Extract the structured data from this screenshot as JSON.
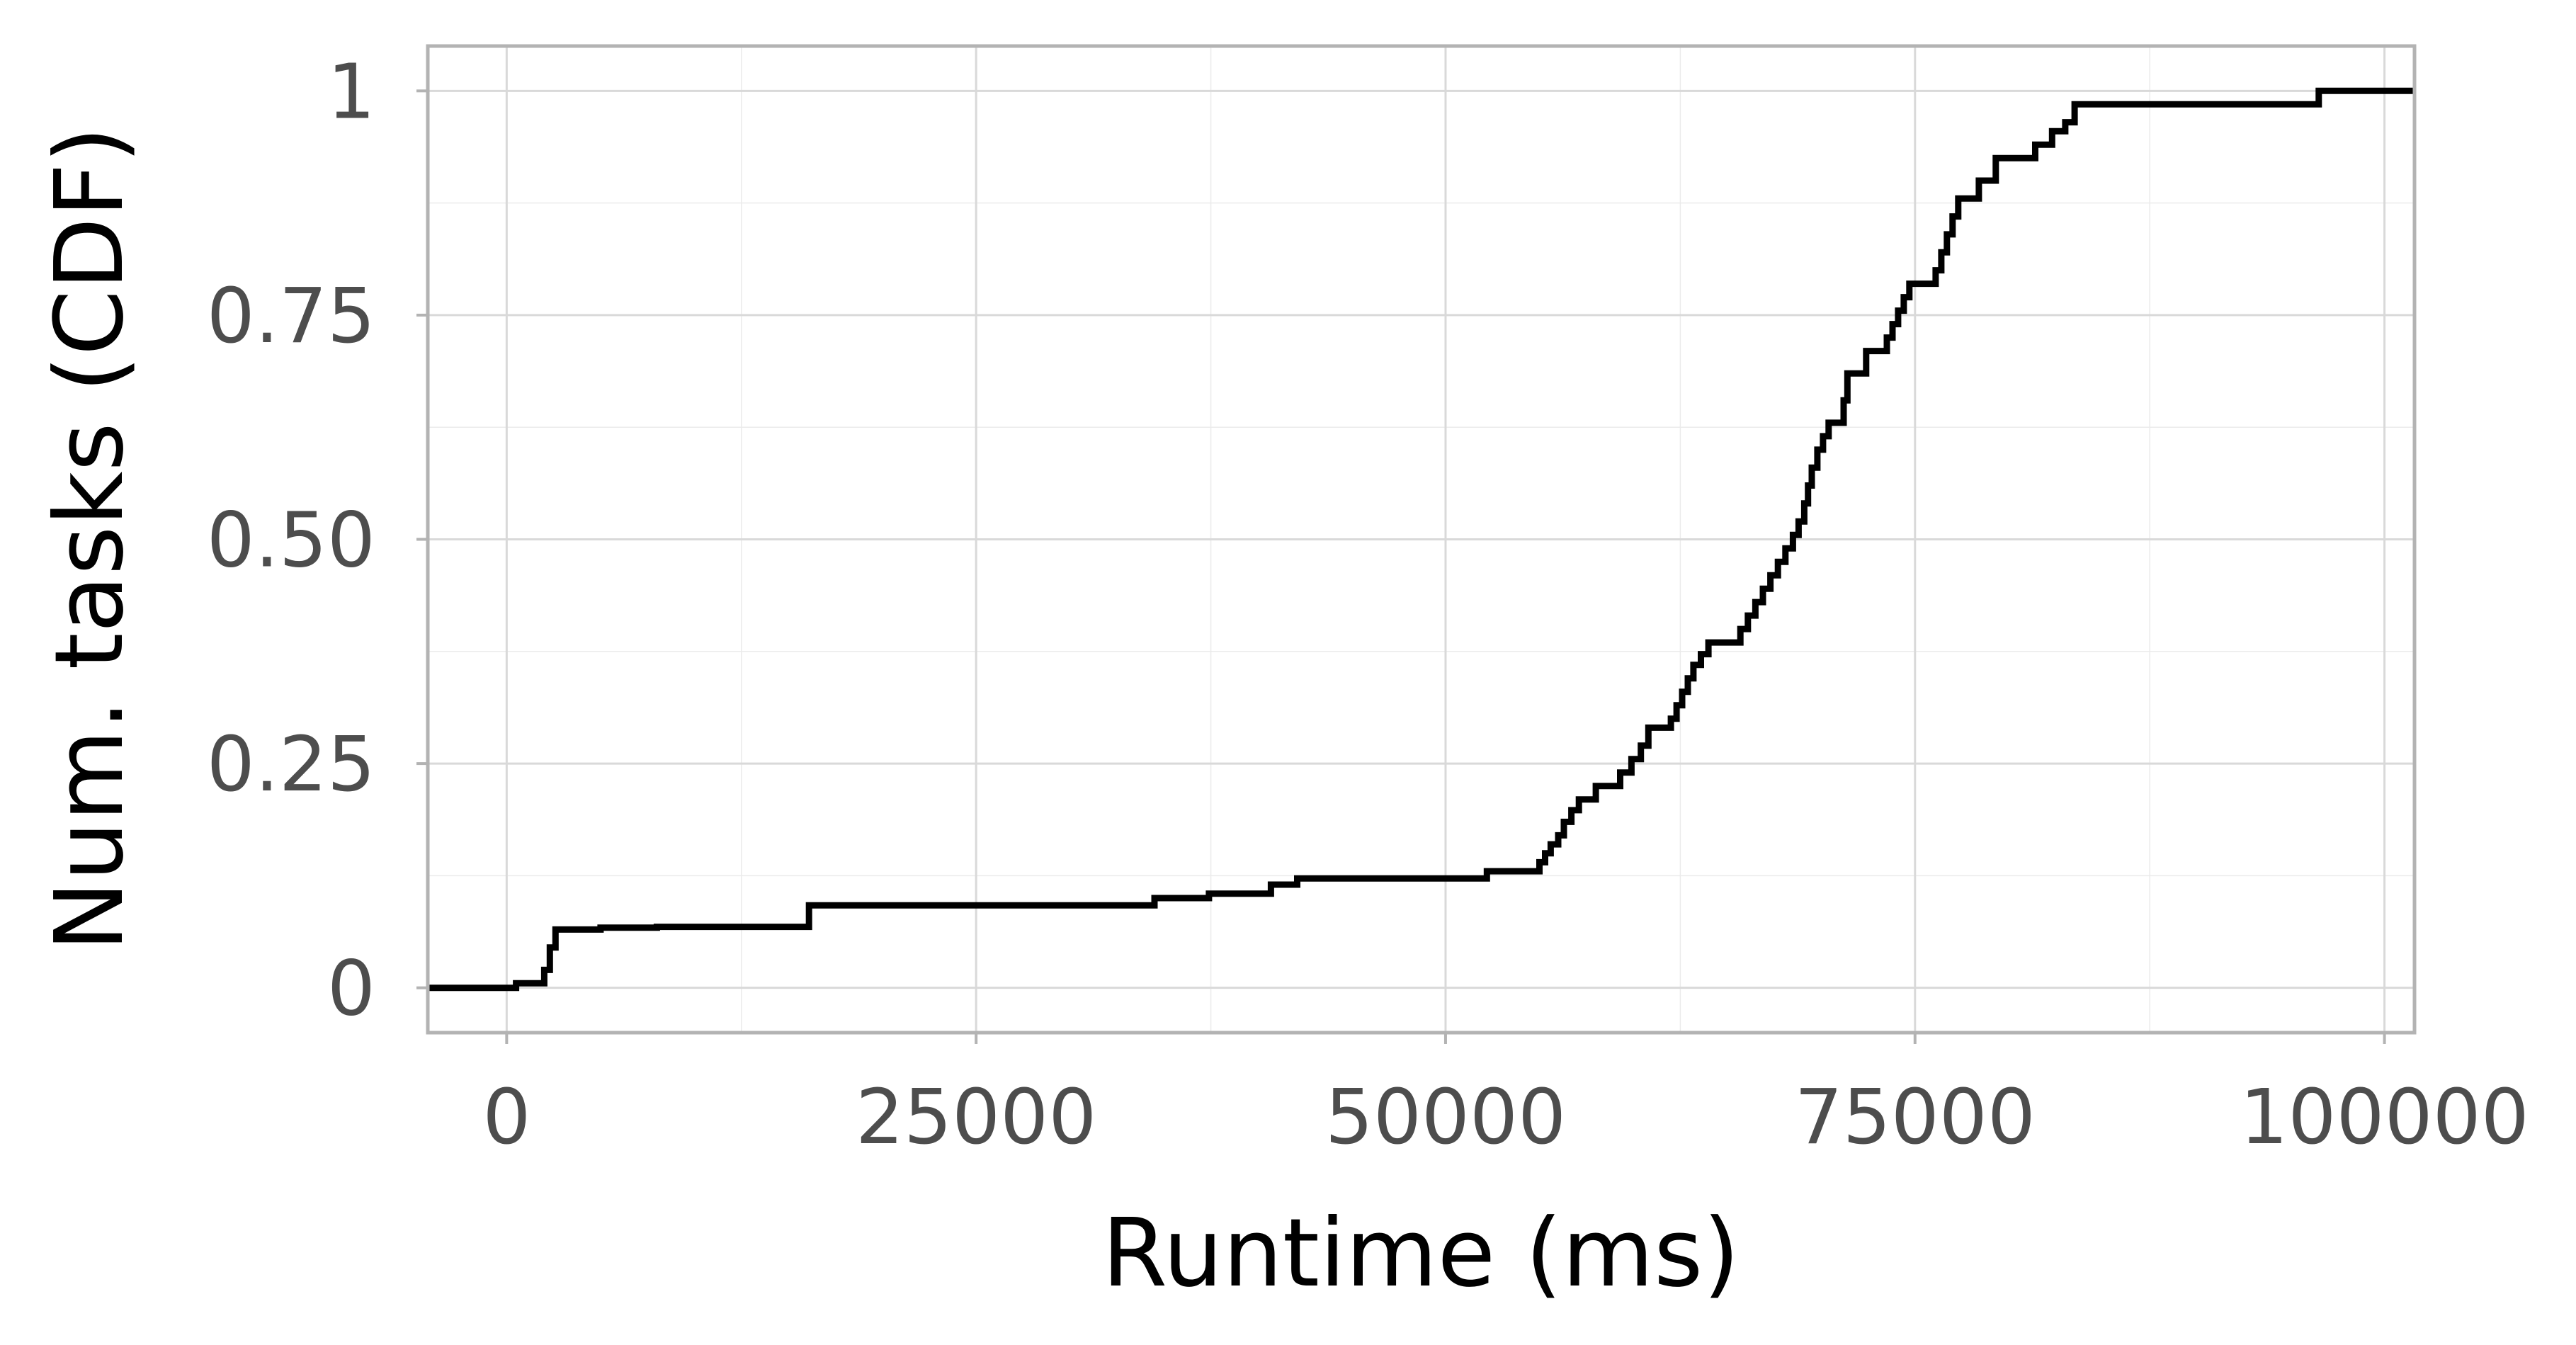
{
  "chart_data": {
    "type": "line",
    "step": true,
    "xlabel": "Runtime (ms)",
    "ylabel": "Num. tasks (CDF)",
    "xlim": [
      -4200,
      101600
    ],
    "ylim": [
      -0.05,
      1.05
    ],
    "x_ticks": [
      0,
      25000,
      50000,
      75000,
      100000
    ],
    "x_tick_labels": [
      "0",
      "25000",
      "50000",
      "75000",
      "100000"
    ],
    "y_ticks": [
      0,
      0.25,
      0.5,
      0.75,
      1
    ],
    "y_tick_labels": [
      "0",
      "0.25",
      "0.50",
      "0.75",
      "1"
    ],
    "grid": true,
    "legend": "none",
    "line_color": "#000000",
    "series": [
      {
        "points": [
          [
            -4200,
            0.0
          ],
          [
            500,
            0.0
          ],
          [
            500,
            0.005
          ],
          [
            2000,
            0.005
          ],
          [
            2000,
            0.02
          ],
          [
            2300,
            0.02
          ],
          [
            2300,
            0.045
          ],
          [
            2600,
            0.045
          ],
          [
            2600,
            0.065
          ],
          [
            5000,
            0.065
          ],
          [
            5000,
            0.067
          ],
          [
            8000,
            0.067
          ],
          [
            8000,
            0.068
          ],
          [
            16100,
            0.068
          ],
          [
            16100,
            0.092
          ],
          [
            34500,
            0.092
          ],
          [
            34500,
            0.1
          ],
          [
            37400,
            0.1
          ],
          [
            37400,
            0.105
          ],
          [
            40700,
            0.105
          ],
          [
            40700,
            0.115
          ],
          [
            42100,
            0.115
          ],
          [
            42100,
            0.122
          ],
          [
            52200,
            0.122
          ],
          [
            52200,
            0.13
          ],
          [
            55000,
            0.13
          ],
          [
            55000,
            0.14
          ],
          [
            55300,
            0.14
          ],
          [
            55300,
            0.15
          ],
          [
            55600,
            0.15
          ],
          [
            55600,
            0.16
          ],
          [
            56000,
            0.16
          ],
          [
            56000,
            0.17
          ],
          [
            56300,
            0.17
          ],
          [
            56300,
            0.185
          ],
          [
            56700,
            0.185
          ],
          [
            56700,
            0.198
          ],
          [
            57100,
            0.198
          ],
          [
            57100,
            0.21
          ],
          [
            58000,
            0.21
          ],
          [
            58000,
            0.225
          ],
          [
            59300,
            0.225
          ],
          [
            59300,
            0.24
          ],
          [
            59900,
            0.24
          ],
          [
            59900,
            0.255
          ],
          [
            60400,
            0.255
          ],
          [
            60400,
            0.27
          ],
          [
            60800,
            0.27
          ],
          [
            60800,
            0.29
          ],
          [
            62000,
            0.29
          ],
          [
            62000,
            0.3
          ],
          [
            62300,
            0.3
          ],
          [
            62300,
            0.315
          ],
          [
            62600,
            0.315
          ],
          [
            62600,
            0.33
          ],
          [
            62900,
            0.33
          ],
          [
            62900,
            0.345
          ],
          [
            63200,
            0.345
          ],
          [
            63200,
            0.36
          ],
          [
            63600,
            0.36
          ],
          [
            63600,
            0.372
          ],
          [
            64000,
            0.372
          ],
          [
            64000,
            0.385
          ],
          [
            65700,
            0.385
          ],
          [
            65700,
            0.4
          ],
          [
            66100,
            0.4
          ],
          [
            66100,
            0.415
          ],
          [
            66500,
            0.415
          ],
          [
            66500,
            0.43
          ],
          [
            66900,
            0.43
          ],
          [
            66900,
            0.445
          ],
          [
            67300,
            0.445
          ],
          [
            67300,
            0.46
          ],
          [
            67700,
            0.46
          ],
          [
            67700,
            0.475
          ],
          [
            68100,
            0.475
          ],
          [
            68100,
            0.49
          ],
          [
            68500,
            0.49
          ],
          [
            68500,
            0.505
          ],
          [
            68800,
            0.505
          ],
          [
            68800,
            0.52
          ],
          [
            69100,
            0.52
          ],
          [
            69100,
            0.54
          ],
          [
            69300,
            0.54
          ],
          [
            69300,
            0.56
          ],
          [
            69500,
            0.56
          ],
          [
            69500,
            0.58
          ],
          [
            69800,
            0.58
          ],
          [
            69800,
            0.6
          ],
          [
            70100,
            0.6
          ],
          [
            70100,
            0.615
          ],
          [
            70400,
            0.615
          ],
          [
            70400,
            0.63
          ],
          [
            71200,
            0.63
          ],
          [
            71200,
            0.655
          ],
          [
            71400,
            0.655
          ],
          [
            71400,
            0.685
          ],
          [
            72400,
            0.685
          ],
          [
            72400,
            0.71
          ],
          [
            73500,
            0.71
          ],
          [
            73500,
            0.725
          ],
          [
            73800,
            0.725
          ],
          [
            73800,
            0.74
          ],
          [
            74100,
            0.74
          ],
          [
            74100,
            0.755
          ],
          [
            74400,
            0.755
          ],
          [
            74400,
            0.77
          ],
          [
            74700,
            0.77
          ],
          [
            74700,
            0.785
          ],
          [
            76100,
            0.785
          ],
          [
            76100,
            0.8
          ],
          [
            76400,
            0.8
          ],
          [
            76400,
            0.82
          ],
          [
            76700,
            0.82
          ],
          [
            76700,
            0.84
          ],
          [
            77000,
            0.84
          ],
          [
            77000,
            0.86
          ],
          [
            77300,
            0.86
          ],
          [
            77300,
            0.88
          ],
          [
            78400,
            0.88
          ],
          [
            78400,
            0.9
          ],
          [
            79300,
            0.9
          ],
          [
            79300,
            0.925
          ],
          [
            81400,
            0.925
          ],
          [
            81400,
            0.94
          ],
          [
            82300,
            0.94
          ],
          [
            82300,
            0.955
          ],
          [
            83000,
            0.955
          ],
          [
            83000,
            0.965
          ],
          [
            83500,
            0.965
          ],
          [
            83500,
            0.985
          ],
          [
            96500,
            0.985
          ],
          [
            96500,
            1.0
          ],
          [
            101600,
            1.0
          ]
        ]
      }
    ]
  }
}
